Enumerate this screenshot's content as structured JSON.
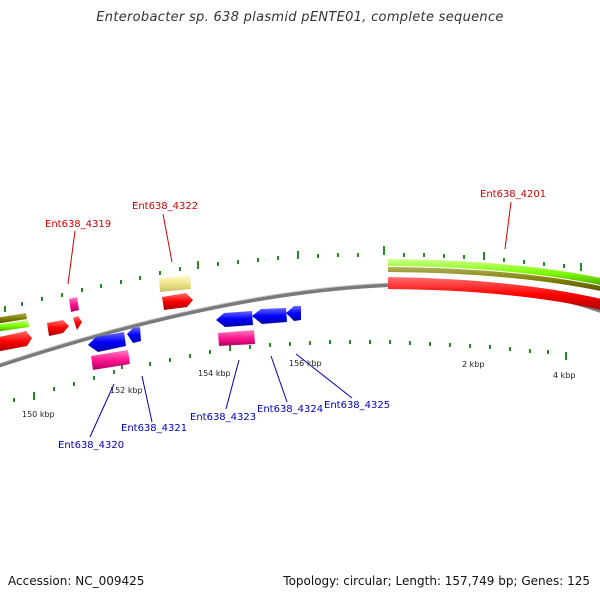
{
  "title": "Enterobacter sp. 638 plasmid pENTE01, complete sequence",
  "footer": {
    "accession": "Accession: NC_009425",
    "summary": "Topology: circular; Length: 157,749 bp; Genes: 125"
  },
  "ticks": [
    "150 kbp",
    "152 kbp",
    "154 kbp",
    "156 kbp",
    "2 kbp",
    "4 kbp"
  ],
  "genes_top": [
    "Ent638_4319",
    "Ent638_4322",
    "Ent638_4201"
  ],
  "genes_bottom": [
    "Ent638_4320",
    "Ent638_4321",
    "Ent638_4323",
    "Ent638_4324",
    "Ent638_4325"
  ],
  "colors": {
    "forward_cds": "#ff0000",
    "reverse_cds": "#0000ff",
    "magenta": "#ff1493",
    "tan": "#f0e68c",
    "green": "#7cfc00",
    "olive": "#808000",
    "backbone": "#888888",
    "tick": "#228b22"
  }
}
